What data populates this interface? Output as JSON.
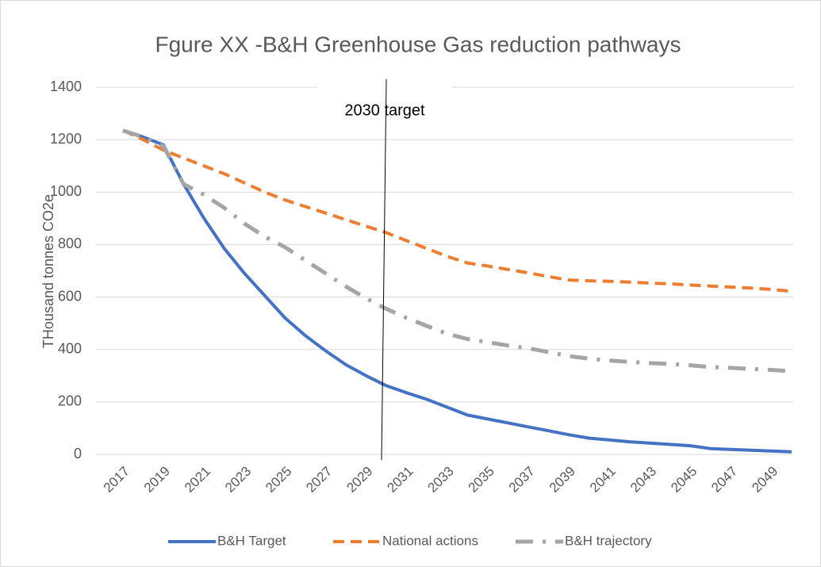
{
  "chart_data": {
    "type": "line",
    "title": "Fgure XX -B&H Greenhouse Gas reduction pathways",
    "y_label": "THousand tonnes CO2e",
    "annotation": "2030 target",
    "categories": [
      "2017",
      null,
      "2019",
      null,
      "2021",
      null,
      "2023",
      null,
      "2025",
      null,
      "2027",
      null,
      "2029",
      null,
      "2031",
      null,
      "2033",
      null,
      "2035",
      null,
      "2037",
      null,
      "2039",
      null,
      "2041",
      null,
      "2043",
      null,
      "2045",
      null,
      "2047",
      null,
      "2049",
      null
    ],
    "series": [
      {
        "name": "B&H Target",
        "color": "#4472c4",
        "line_style": "solid",
        "values": [
          1235,
          1210,
          1180,
          1030,
          900,
          785,
          690,
          605,
          520,
          453,
          395,
          342,
          300,
          262,
          235,
          210,
          180,
          150,
          135,
          120,
          105,
          90,
          75,
          62,
          55,
          48,
          43,
          38,
          33,
          22,
          19,
          16,
          13,
          10
        ]
      },
      {
        "name": "National actions",
        "color": "#ed7d31",
        "line_style": "dash",
        "values": [
          1235,
          1200,
          1160,
          1130,
          1100,
          1070,
          1035,
          1000,
          970,
          945,
          920,
          895,
          870,
          845,
          815,
          785,
          755,
          730,
          718,
          705,
          692,
          678,
          665,
          662,
          660,
          657,
          653,
          650,
          646,
          642,
          638,
          634,
          629,
          622
        ]
      },
      {
        "name": "B&H trajectory",
        "color": "#a5a5a5",
        "line_style": "dashdot",
        "values": [
          1235,
          1210,
          1175,
          1030,
          990,
          940,
          880,
          830,
          790,
          740,
          690,
          640,
          595,
          555,
          520,
          490,
          460,
          440,
          428,
          415,
          405,
          390,
          375,
          365,
          358,
          353,
          348,
          345,
          340,
          333,
          330,
          326,
          322,
          317
        ]
      }
    ],
    "ylim": [
      0,
      1400
    ],
    "yticks": [
      0,
      200,
      400,
      600,
      800,
      1000,
      1200,
      1400
    ],
    "grid": true,
    "legend": "bottom"
  }
}
